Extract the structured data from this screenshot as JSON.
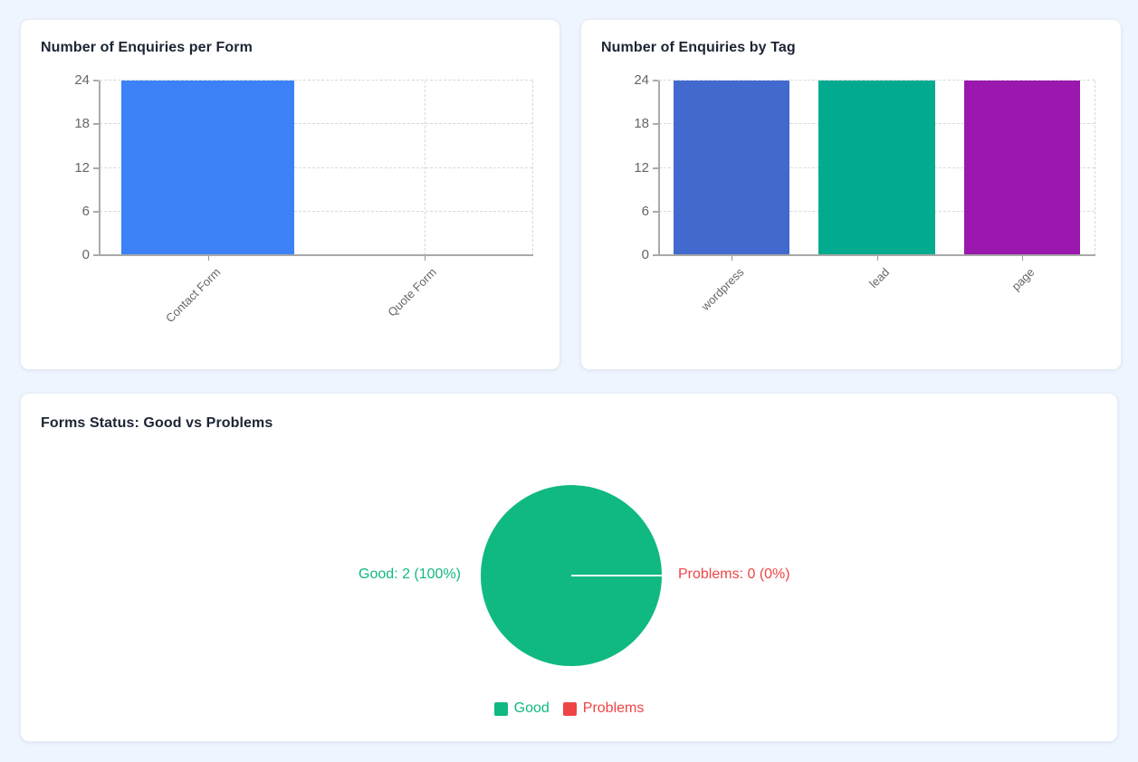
{
  "page": {
    "background_color": "#eff5ff"
  },
  "theme": {
    "card_background": "#ffffff",
    "title_color": "#1c2434",
    "axis_text_color": "#666666",
    "grid_color": "#d9d9d9",
    "axis_line_color": "#a8a8a8"
  },
  "chart_data": [
    {
      "type": "bar",
      "title": "Number of Enquiries per Form",
      "categories": [
        "Contact Form",
        "Quote Form"
      ],
      "values": [
        24,
        0
      ],
      "bar_colors": [
        "#3c82f6",
        "#3c82f6"
      ],
      "xlabel": "",
      "ylabel": "",
      "yticks": [
        0,
        6,
        12,
        18,
        24
      ],
      "ylim": [
        0,
        24
      ],
      "grid": true
    },
    {
      "type": "bar",
      "title": "Number of Enquiries by Tag",
      "categories": [
        "wordpress",
        "lead",
        "page"
      ],
      "values": [
        24,
        24,
        24
      ],
      "bar_colors": [
        "#4269cd",
        "#02ab90",
        "#9a18ad"
      ],
      "xlabel": "",
      "ylabel": "",
      "yticks": [
        0,
        6,
        12,
        18,
        24
      ],
      "ylim": [
        0,
        24
      ],
      "grid": true
    },
    {
      "type": "pie",
      "title": "Forms Status: Good vs Problems",
      "slices": [
        {
          "label": "Good",
          "value": 2,
          "percent": 100,
          "callout": "Good: 2 (100%)",
          "color": "#10b981"
        },
        {
          "label": "Problems",
          "value": 0,
          "percent": 0,
          "callout": "Problems: 0 (0%)",
          "color": "#ef4444"
        }
      ],
      "legend_position": "bottom",
      "legend": [
        "Good",
        "Problems"
      ]
    }
  ]
}
